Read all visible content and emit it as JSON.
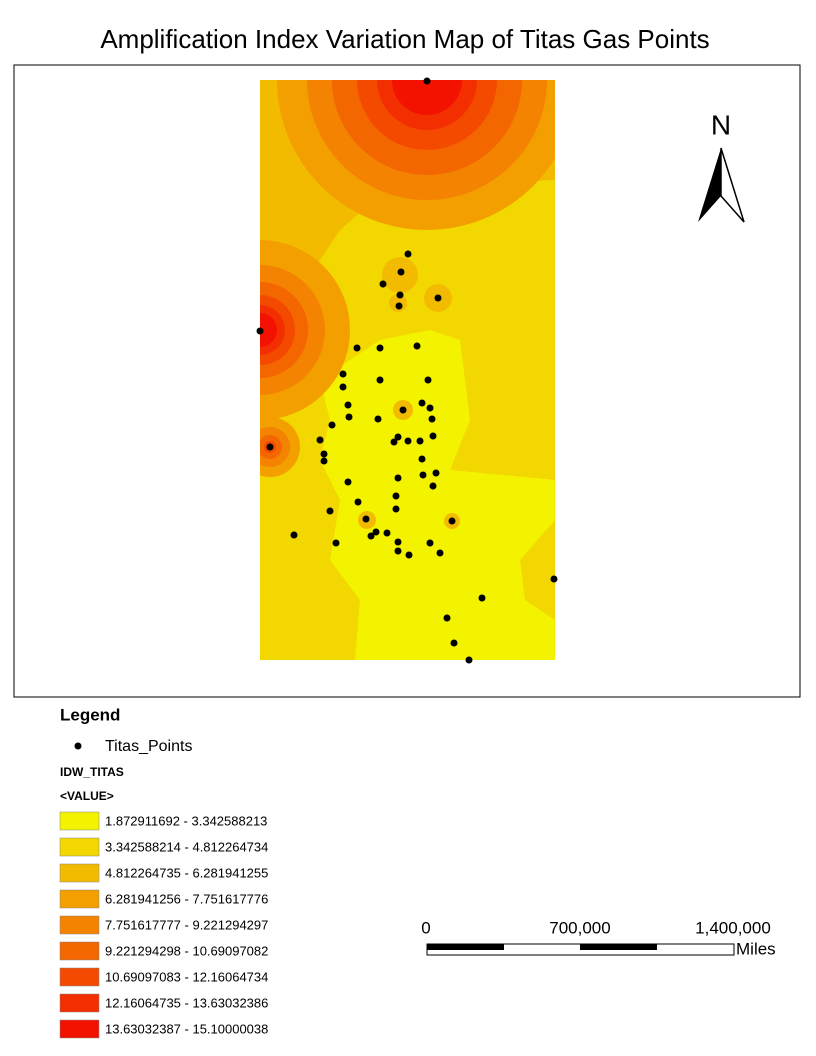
{
  "title": "Amplification Index Variation Map of Titas Gas Points",
  "north_arrow": {
    "label": "N"
  },
  "legend": {
    "title": "Legend",
    "points_layer": "Titas_Points",
    "raster_layer": "IDW_TITAS",
    "field": "<VALUE>",
    "classes": [
      {
        "label": "1.872911692 - 3.342588213",
        "color": "#f3f300"
      },
      {
        "label": "3.342588214 - 4.812264734",
        "color": "#f3d700"
      },
      {
        "label": "4.812264735 - 6.281941255",
        "color": "#f3bb00"
      },
      {
        "label": "6.281941256 - 7.751617776",
        "color": "#f39f00"
      },
      {
        "label": "7.751617777 - 9.221294297",
        "color": "#f38300"
      },
      {
        "label": "9.221294298 - 10.69097082",
        "color": "#f36600"
      },
      {
        "label": "10.69097083 - 12.16064734",
        "color": "#f34a00"
      },
      {
        "label": "12.16064735 - 13.63032386",
        "color": "#f32e00"
      },
      {
        "label": "13.63032387 - 15.10000038",
        "color": "#f31200"
      }
    ]
  },
  "scale_bar": {
    "labels": [
      "0",
      "700,000",
      "1,400,000"
    ],
    "unit": "Miles"
  }
}
